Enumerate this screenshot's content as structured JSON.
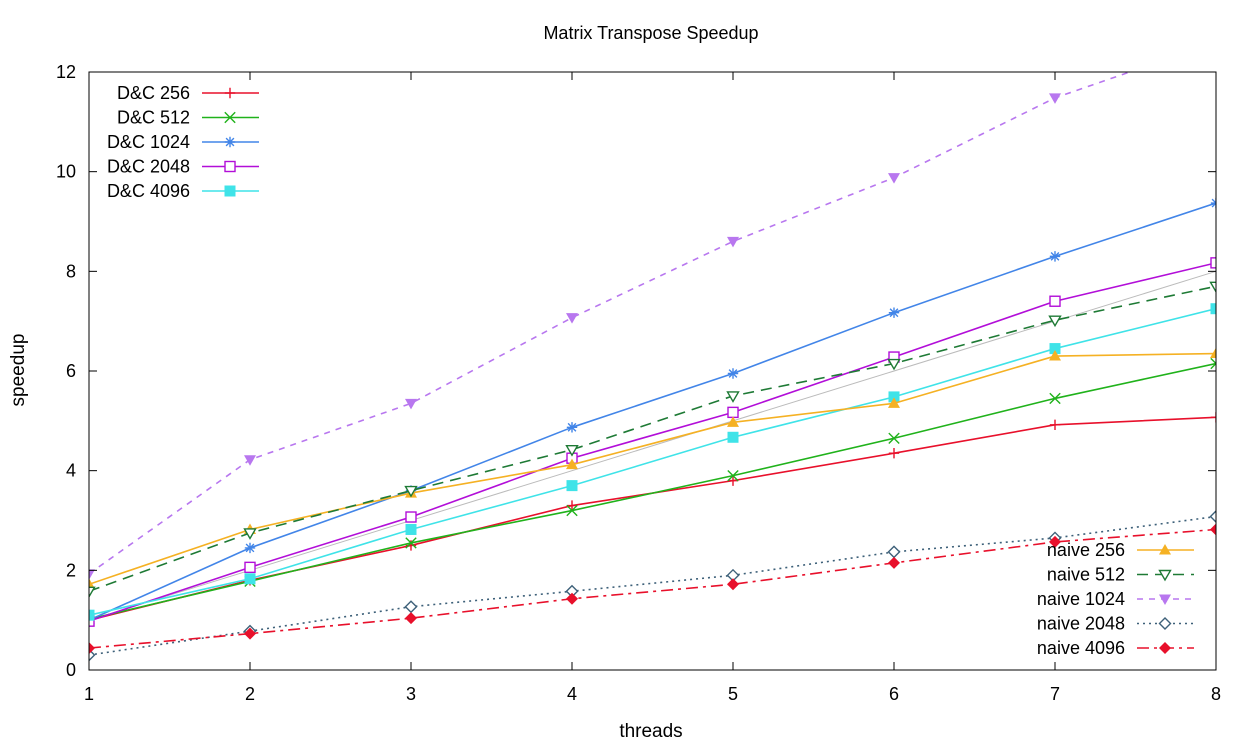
{
  "chart_data": {
    "type": "line",
    "title": "Matrix Transpose Speedup",
    "xlabel": "threads",
    "ylabel": "speedup",
    "xlim": [
      1,
      8
    ],
    "ylim": [
      0,
      12
    ],
    "xticks": [
      "1",
      "2",
      "3",
      "4",
      "5",
      "6",
      "7",
      "8"
    ],
    "yticks": [
      "0",
      "2",
      "4",
      "6",
      "8",
      "10",
      "12"
    ],
    "x": [
      1,
      2,
      3,
      4,
      5,
      6,
      7,
      8
    ],
    "grid": false,
    "reference_line": {
      "x": [
        1,
        8
      ],
      "y": [
        1,
        8
      ],
      "color": "#bbbbbb"
    },
    "legends": {
      "left": "top-left",
      "right": "bottom-right"
    },
    "series": [
      {
        "name": "D&C 256",
        "values": [
          1.0,
          1.8,
          2.5,
          3.3,
          3.8,
          4.35,
          4.92,
          5.07
        ],
        "color": "#e8102b",
        "marker": "plus",
        "dash": "solid",
        "legend": "left"
      },
      {
        "name": "D&C 512",
        "values": [
          1.02,
          1.78,
          2.55,
          3.2,
          3.9,
          4.65,
          5.45,
          6.15
        ],
        "color": "#20b21b",
        "marker": "x",
        "dash": "solid",
        "legend": "left"
      },
      {
        "name": "D&C 1024",
        "values": [
          1.0,
          2.45,
          3.6,
          4.87,
          5.95,
          7.17,
          8.3,
          9.37
        ],
        "color": "#4285e8",
        "marker": "star",
        "dash": "solid",
        "legend": "left"
      },
      {
        "name": "D&C 2048",
        "values": [
          0.98,
          2.06,
          3.07,
          4.25,
          5.17,
          6.28,
          7.4,
          8.17
        ],
        "color": "#b20ed8",
        "marker": "square",
        "dash": "solid",
        "legend": "left"
      },
      {
        "name": "D&C 4096",
        "values": [
          1.1,
          1.83,
          2.82,
          3.7,
          4.67,
          5.48,
          6.45,
          7.25
        ],
        "color": "#3fe3e8",
        "marker": "filled-square",
        "dash": "solid",
        "legend": "left"
      },
      {
        "name": "naive 256",
        "values": [
          1.72,
          2.82,
          3.55,
          4.12,
          4.97,
          5.35,
          6.3,
          6.35
        ],
        "color": "#f5b123",
        "marker": "filled-triangle-up",
        "dash": "solid",
        "legend": "right"
      },
      {
        "name": "naive 512",
        "values": [
          1.58,
          2.75,
          3.6,
          4.42,
          5.5,
          6.15,
          7.02,
          7.7
        ],
        "color": "#1e7a35",
        "marker": "triangle-down",
        "dash": "dashed",
        "legend": "right"
      },
      {
        "name": "naive 1024",
        "values": [
          1.93,
          4.22,
          5.35,
          7.07,
          8.6,
          9.88,
          11.48,
          12.6
        ],
        "color": "#b877ef",
        "marker": "filled-triangle-down",
        "dash": "short-dashed",
        "legend": "right"
      },
      {
        "name": "naive 2048",
        "values": [
          0.3,
          0.78,
          1.27,
          1.58,
          1.9,
          2.37,
          2.65,
          3.08
        ],
        "color": "#3d6079",
        "marker": "diamond",
        "dash": "dotted",
        "legend": "right"
      },
      {
        "name": "naive 4096",
        "values": [
          0.44,
          0.73,
          1.04,
          1.43,
          1.72,
          2.15,
          2.57,
          2.82
        ],
        "color": "#e8102b",
        "marker": "filled-diamond",
        "dash": "dash-dot",
        "legend": "right"
      }
    ]
  }
}
